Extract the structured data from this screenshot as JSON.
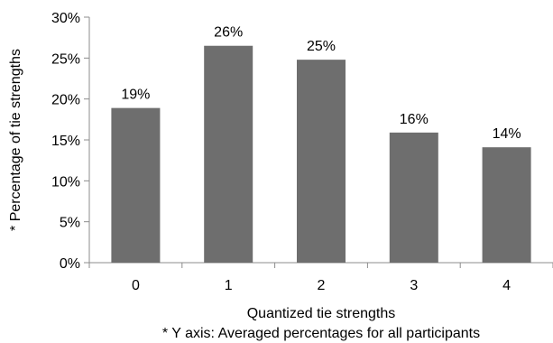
{
  "chart_data": {
    "type": "bar",
    "categories": [
      "0",
      "1",
      "2",
      "3",
      "4"
    ],
    "values": [
      19,
      26,
      25,
      16,
      14
    ],
    "data_labels": [
      "19%",
      "26%",
      "25%",
      "16%",
      "14%"
    ],
    "plotted_values": [
      18.9,
      26.5,
      24.8,
      15.9,
      14.1
    ],
    "title": "",
    "xlabel": "Quantized tie strengths",
    "ylabel": "* Percentage of tie strengths",
    "ylim": [
      0,
      30
    ],
    "yticks": [
      0,
      5,
      10,
      15,
      20,
      25,
      30
    ],
    "ytick_labels": [
      "0%",
      "5%",
      "10%",
      "15%",
      "20%",
      "25%",
      "30%"
    ],
    "grid": false,
    "legend": "none",
    "bar_color": "#6e6e6e",
    "footnote": "* Y axis: Averaged percentages for all participants"
  }
}
